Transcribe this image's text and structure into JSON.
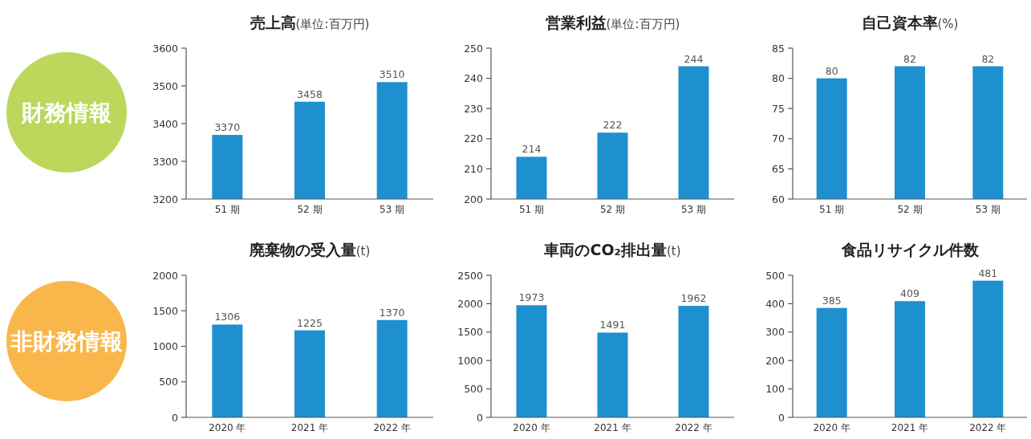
{
  "chart_data": [
    {
      "type": "other",
      "title": "財務情報",
      "color": "#bcd75c"
    },
    {
      "type": "bar",
      "title": "**売上高**(単位:百万円)",
      "categories": [
        "51 期",
        "52 期",
        "53 期"
      ],
      "values": [
        3370,
        3458,
        3510
      ],
      "color": "#1e90d0",
      "ylim": [
        3200,
        3600
      ],
      "yticks": [
        3200,
        3300,
        3400,
        3500,
        3600
      ],
      "data_labels": true
    },
    {
      "type": "bar",
      "title": "**営業利益**(単位:百万円)",
      "categories": [
        "51 期",
        "52 期",
        "53 期"
      ],
      "values": [
        214,
        222,
        244
      ],
      "color": "#1e90d0",
      "ylim": [
        200,
        250
      ],
      "yticks": [
        200,
        210,
        220,
        230,
        240,
        250
      ],
      "data_labels": true
    },
    {
      "type": "bar",
      "title": "**自己資本率**(%)",
      "categories": [
        "51 期",
        "52 期",
        "53 期"
      ],
      "values": [
        80,
        82,
        82
      ],
      "color": "#1e90d0",
      "ylim": [
        60,
        85
      ],
      "yticks": [
        60,
        65,
        70,
        75,
        80,
        85
      ],
      "data_labels": true
    },
    {
      "type": "other",
      "title": "非財務情報",
      "color": "#f9b74b"
    },
    {
      "type": "bar",
      "title": "**廃棄物の受入量**(t)",
      "categories": [
        "2020 年",
        "2021 年",
        "2022 年"
      ],
      "values": [
        1306,
        1225,
        1370
      ],
      "color": "#1e90d0",
      "ylim": [
        0,
        2000
      ],
      "yticks": [
        0,
        500,
        1000,
        1500,
        2000
      ],
      "data_labels": true
    },
    {
      "type": "bar",
      "title": "**車両のCO₂排出量**(t)",
      "categories": [
        "2020 年",
        "2021 年",
        "2022 年"
      ],
      "values": [
        1973,
        1491,
        1962
      ],
      "color": "#1e90d0",
      "ylim": [
        0,
        2500
      ],
      "yticks": [
        0,
        500,
        1000,
        1500,
        2000,
        2500
      ],
      "data_labels": true
    },
    {
      "type": "bar",
      "title": "食品リサイクル件数",
      "categories": [
        "2020 年",
        "2021 年",
        "2022 年"
      ],
      "values": [
        385,
        409,
        481
      ],
      "color": "#1e90d0",
      "ylim": [
        0,
        500
      ],
      "yticks": [
        0,
        100,
        200,
        300,
        400,
        500
      ],
      "data_labels": true
    }
  ]
}
